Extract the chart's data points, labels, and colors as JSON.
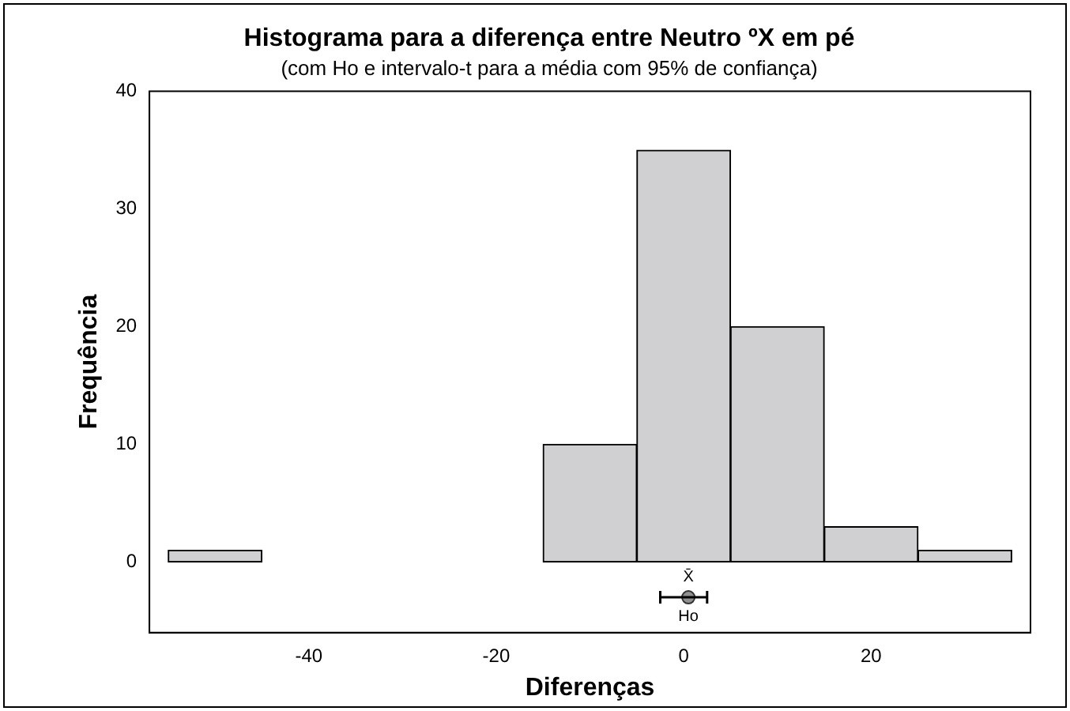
{
  "chart_data": {
    "type": "histogram",
    "title": "Histograma para a diferença entre Neutro ºX em pé",
    "subtitle": "(com Ho e intervalo-t para a média com 95% de confiança)",
    "xlabel": "Diferenças",
    "ylabel": "Frequência",
    "series": [
      {
        "bins": [
          -55,
          -45,
          -35,
          -25,
          -15,
          -5,
          5,
          15,
          25,
          35
        ],
        "values": [
          1,
          0,
          0,
          0,
          10,
          35,
          20,
          3,
          1
        ],
        "color": "#d0d0d2"
      },
      {
        "type": "scatter",
        "x": [
          0.5
        ],
        "values": [
          -3
        ],
        "xerrors": [
          [
            -2.5,
            2.5
          ]
        ],
        "color": "#909090"
      }
    ],
    "annotations": [
      "X̄",
      "Ho"
    ],
    "xlim": [
      -57,
      37
    ],
    "xticks": [
      -40,
      -20,
      0,
      20
    ],
    "ylim": [
      -6,
      40
    ],
    "yticks": [
      0,
      10,
      20,
      30,
      40
    ],
    "grid": false,
    "legend": false,
    "marker": "circle"
  }
}
